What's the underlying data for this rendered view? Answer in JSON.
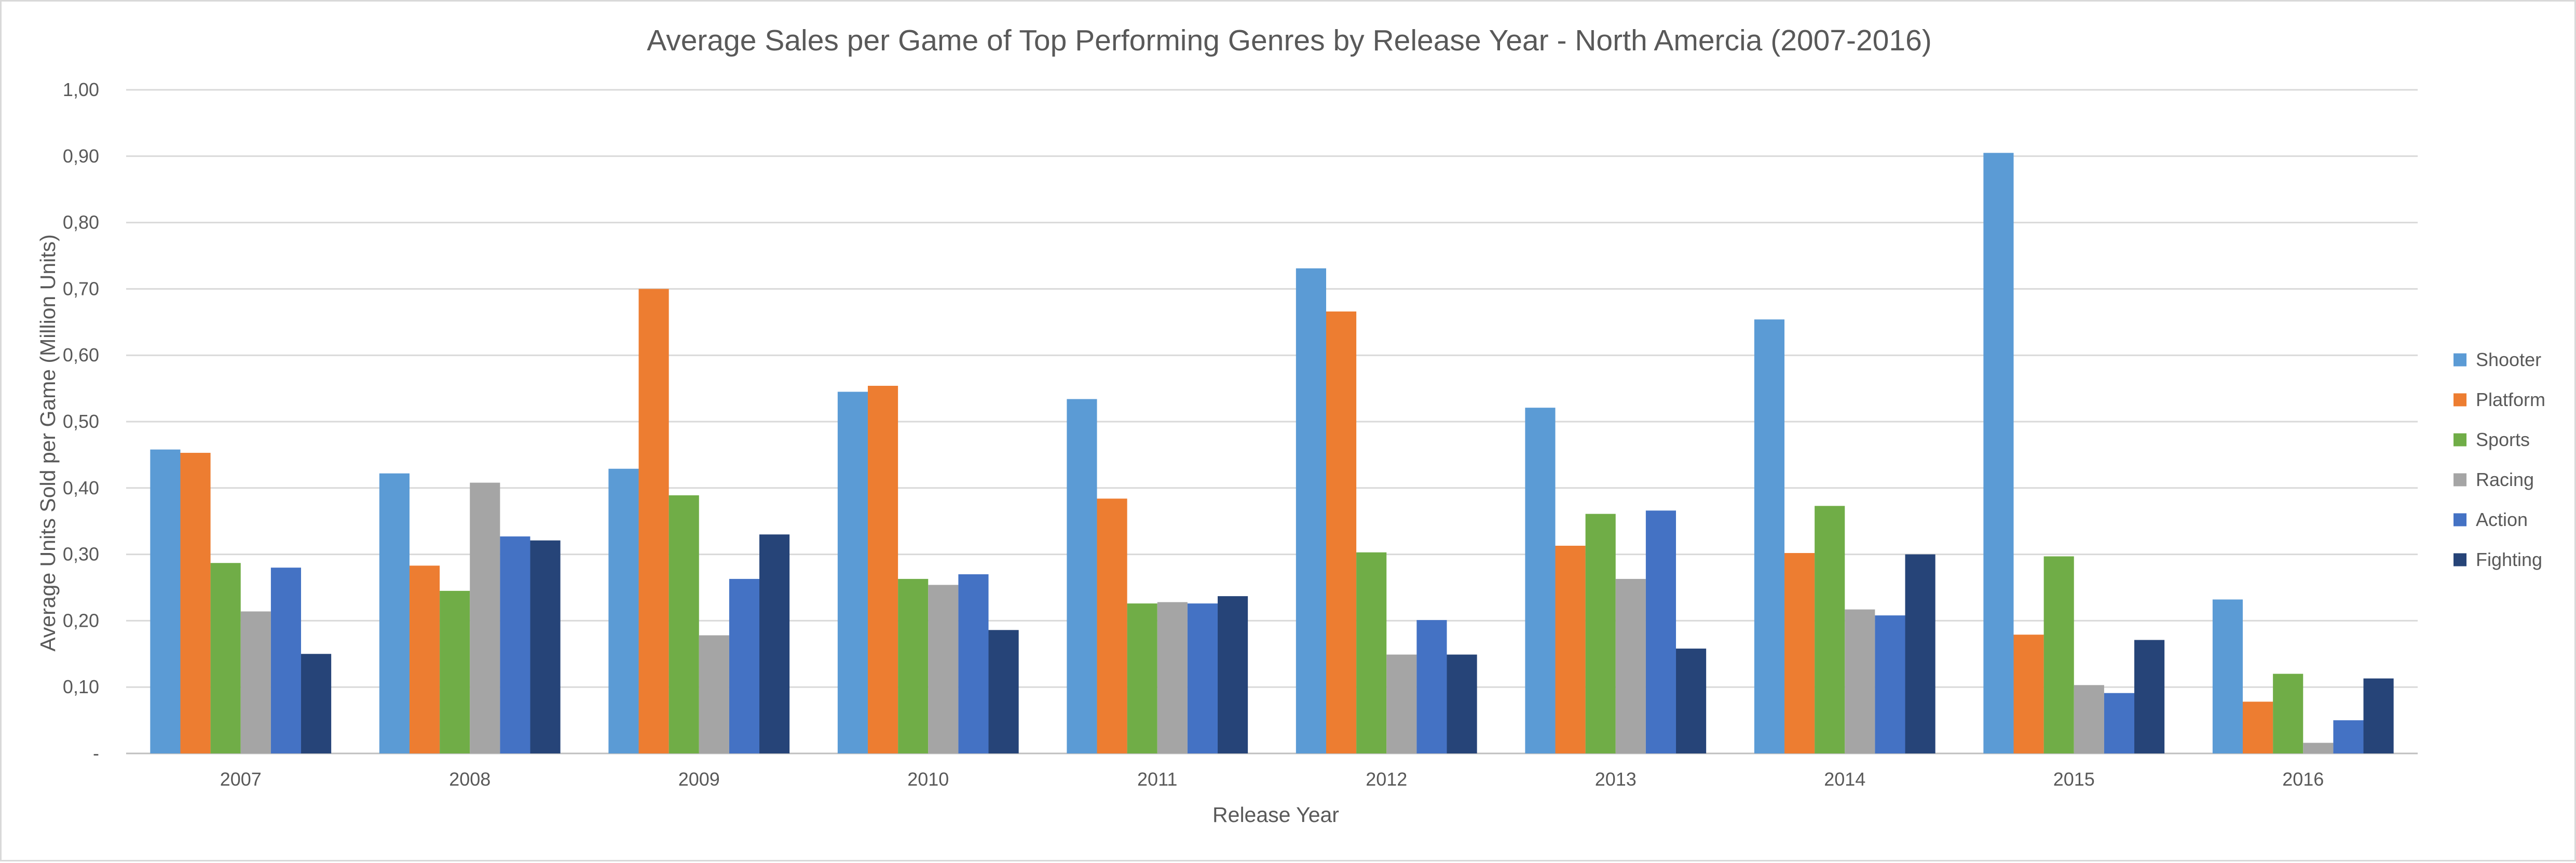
{
  "chart_data": {
    "type": "bar",
    "title": "Average Sales per Game of Top Performing Genres by Release Year - North Amercia (2007-2016)",
    "xlabel": "Release Year",
    "ylabel": "Average Units Sold per Game (Million Units)",
    "ylim": [
      0,
      1.0
    ],
    "yticks": [
      "-",
      "0,10",
      "0,20",
      "0,30",
      "0,40",
      "0,50",
      "0,60",
      "0,70",
      "0,80",
      "0,90",
      "1,00"
    ],
    "grid": true,
    "legend_position": "right",
    "categories": [
      "2007",
      "2008",
      "2009",
      "2010",
      "2011",
      "2012",
      "2013",
      "2014",
      "2015",
      "2016"
    ],
    "series": [
      {
        "name": "Shooter",
        "color": "#5B9BD5",
        "values": [
          0.458,
          0.422,
          0.429,
          0.545,
          0.534,
          0.731,
          0.521,
          0.654,
          0.905,
          0.232
        ]
      },
      {
        "name": "Platform",
        "color": "#ED7D31",
        "values": [
          0.453,
          0.283,
          0.7,
          0.554,
          0.384,
          0.666,
          0.313,
          0.302,
          0.179,
          0.078
        ]
      },
      {
        "name": "Sports",
        "color": "#70AD47",
        "values": [
          0.287,
          0.245,
          0.389,
          0.263,
          0.226,
          0.303,
          0.361,
          0.373,
          0.297,
          0.12
        ]
      },
      {
        "name": "Racing",
        "color": "#A5A5A5",
        "values": [
          0.214,
          0.408,
          0.178,
          0.254,
          0.228,
          0.149,
          0.263,
          0.217,
          0.103,
          0.016
        ]
      },
      {
        "name": "Action",
        "color": "#4472C4",
        "values": [
          0.28,
          0.327,
          0.263,
          0.27,
          0.226,
          0.201,
          0.366,
          0.208,
          0.091,
          0.05
        ]
      },
      {
        "name": "Fighting",
        "color": "#264478",
        "values": [
          0.15,
          0.321,
          0.33,
          0.186,
          0.237,
          0.149,
          0.158,
          0.3,
          0.171,
          0.113
        ]
      }
    ]
  }
}
